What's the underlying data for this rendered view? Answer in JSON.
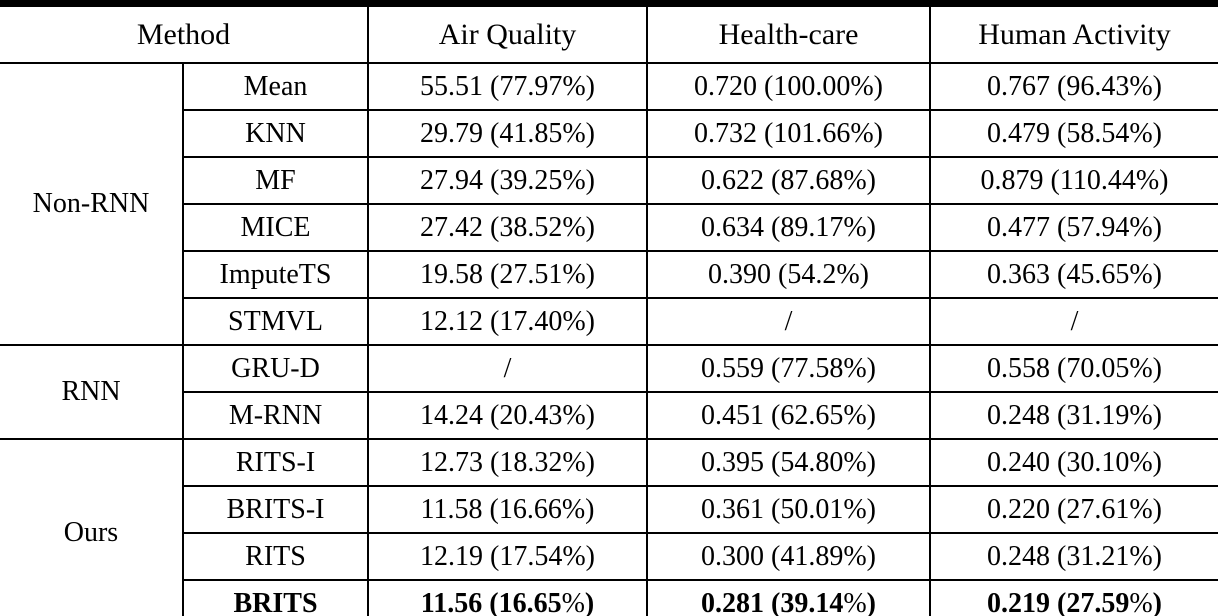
{
  "colors": {
    "background": "#ffffff",
    "text": "#000000",
    "rule": "#000000"
  },
  "table": {
    "headers": {
      "method": "Method",
      "air_quality": "Air Quality",
      "health_care": "Health-care",
      "human_activity": "Human Activity"
    },
    "missing_marker": "/",
    "groups": [
      {
        "label": "Non-RNN",
        "rows": [
          {
            "method": "Mean",
            "air_quality": "55.51 (77.97%)",
            "health_care": "0.720 (100.00%)",
            "human_activity": "0.767 (96.43%)"
          },
          {
            "method": "KNN",
            "air_quality": "29.79 (41.85%)",
            "health_care": "0.732 (101.66%)",
            "human_activity": "0.479 (58.54%)"
          },
          {
            "method": "MF",
            "air_quality": "27.94 (39.25%)",
            "health_care": "0.622 (87.68%)",
            "human_activity": "0.879 (110.44%)"
          },
          {
            "method": "MICE",
            "air_quality": "27.42 (38.52%)",
            "health_care": "0.634 (89.17%)",
            "human_activity": "0.477 (57.94%)"
          },
          {
            "method": "ImputeTS",
            "air_quality": "19.58 (27.51%)",
            "health_care": "0.390 (54.2%)",
            "human_activity": "0.363 (45.65%)"
          },
          {
            "method": "STMVL",
            "air_quality": "12.12 (17.40%)",
            "health_care": "/",
            "human_activity": "/"
          }
        ]
      },
      {
        "label": "RNN",
        "rows": [
          {
            "method": "GRU-D",
            "air_quality": "/",
            "health_care": "0.559 (77.58%)",
            "human_activity": "0.558 (70.05%)"
          },
          {
            "method": "M-RNN",
            "air_quality": "14.24 (20.43%)",
            "health_care": "0.451 (62.65%)",
            "human_activity": "0.248 (31.19%)"
          }
        ]
      },
      {
        "label": "Ours",
        "rows": [
          {
            "method": "RITS-I",
            "air_quality": "12.73 (18.32%)",
            "health_care": "0.395 (54.80%)",
            "human_activity": "0.240 (30.10%)"
          },
          {
            "method": "BRITS-I",
            "air_quality": "11.58 (16.66%)",
            "health_care": "0.361 (50.01%)",
            "human_activity": "0.220 (27.61%)"
          },
          {
            "method": "RITS",
            "air_quality": "12.19 (17.54%)",
            "health_care": "0.300 (41.89%)",
            "human_activity": "0.248 (31.21%)"
          },
          {
            "method": "BRITS",
            "air_quality": "11.56 (16.65%)",
            "health_care": "0.281 (39.14%)",
            "human_activity": "0.219 (27.59%)"
          }
        ]
      }
    ]
  }
}
